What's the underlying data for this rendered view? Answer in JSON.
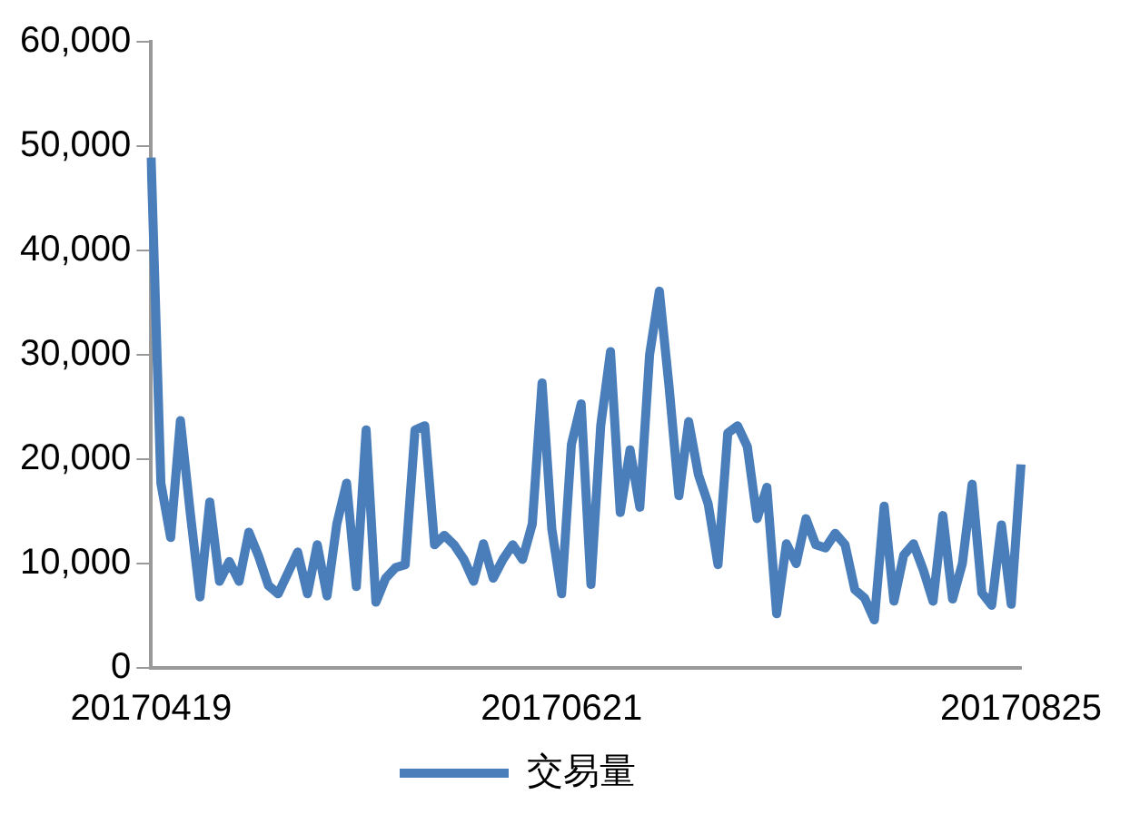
{
  "chart_data": {
    "type": "line",
    "categories": [
      "20170419",
      null,
      null,
      null,
      null,
      null,
      null,
      null,
      null,
      null,
      null,
      null,
      null,
      null,
      null,
      null,
      null,
      null,
      null,
      null,
      null,
      null,
      null,
      null,
      null,
      null,
      null,
      null,
      null,
      null,
      null,
      null,
      null,
      null,
      null,
      null,
      null,
      null,
      null,
      null,
      null,
      null,
      "20170621",
      null,
      null,
      null,
      null,
      null,
      null,
      null,
      null,
      null,
      null,
      null,
      null,
      null,
      null,
      null,
      null,
      null,
      null,
      null,
      null,
      null,
      null,
      null,
      null,
      null,
      null,
      null,
      null,
      null,
      null,
      null,
      null,
      null,
      null,
      null,
      null,
      null,
      null,
      null,
      null,
      null,
      null,
      null,
      null,
      null,
      null,
      "20170825"
    ],
    "series": [
      {
        "name": "交易量",
        "color": "#4a7ebb",
        "values": [
          48900,
          17700,
          12500,
          23700,
          14900,
          6800,
          15900,
          8300,
          10200,
          8300,
          13000,
          10700,
          7900,
          7100,
          9100,
          11100,
          7100,
          11800,
          6900,
          13800,
          17700,
          7800,
          22800,
          6300,
          8600,
          9600,
          9900,
          22800,
          23200,
          11800,
          12700,
          11800,
          10400,
          8300,
          11900,
          8600,
          10400,
          11800,
          10400,
          13800,
          27300,
          13300,
          7100,
          21400,
          25300,
          8000,
          23200,
          30300,
          14900,
          20900,
          15400,
          30000,
          36100,
          26900,
          16500,
          23600,
          18500,
          15700,
          9900,
          22500,
          23200,
          21200,
          14300,
          17300,
          5200,
          11900,
          10000,
          14300,
          11800,
          11500,
          12900,
          11800,
          7500,
          6700,
          4600,
          15500,
          6400,
          10800,
          11900,
          9400,
          6400,
          14600,
          6600,
          10000,
          17600,
          7200,
          6000,
          13700,
          6100,
          19500
        ]
      }
    ],
    "ylim": [
      0,
      60000
    ],
    "yticks": [
      0,
      {
        "value": 10000,
        "label": "10,000"
      },
      {
        "value": 20000,
        "label": "20,000"
      },
      {
        "value": 30000,
        "label": "30,000"
      },
      {
        "value": 40000,
        "label": "40,000"
      },
      {
        "value": 50000,
        "label": "50,000"
      },
      {
        "value": 60000,
        "label": "60,000"
      }
    ],
    "grid": false,
    "legend": "bottom",
    "marker": "none",
    "line_style": "solid"
  }
}
